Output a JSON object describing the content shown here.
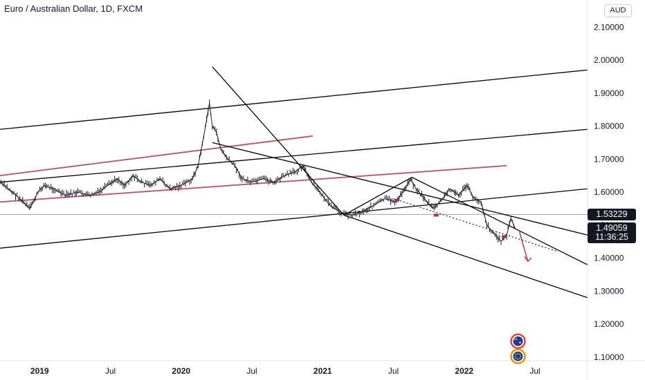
{
  "header": {
    "symbol_title": "Euro / Australian Dollar, 1D, FXCM",
    "currency": "AUD"
  },
  "colors": {
    "candles": "#131722",
    "trendlines": "#000000",
    "channel_red": "#b5606a",
    "arrow": "#b0313a",
    "hline": "#9aa0ad",
    "price_tag_bg": "#131722"
  },
  "chart_data": {
    "type": "line",
    "title": "",
    "xlabel": "",
    "ylabel": "",
    "ylim": [
      1.08,
      2.14
    ],
    "y_ticks": [
      "2.10000",
      "2.00000",
      "1.90000",
      "1.80000",
      "1.70000",
      "1.60000",
      "1.50000",
      "1.40000",
      "1.30000",
      "1.20000",
      "1.10000"
    ],
    "x_ticks": [
      {
        "label": "2019",
        "t": 2019.0,
        "bold": true
      },
      {
        "label": "Jul",
        "t": 2019.5,
        "bold": false
      },
      {
        "label": "2020",
        "t": 2020.0,
        "bold": true
      },
      {
        "label": "Jul",
        "t": 2020.5,
        "bold": false
      },
      {
        "label": "2021",
        "t": 2021.0,
        "bold": true
      },
      {
        "label": "Jul",
        "t": 2021.5,
        "bold": false
      },
      {
        "label": "2022",
        "t": 2022.0,
        "bold": true
      },
      {
        "label": "Jul",
        "t": 2022.5,
        "bold": false
      }
    ],
    "price_path": [
      [
        2018.72,
        1.63
      ],
      [
        2018.78,
        1.61
      ],
      [
        2018.86,
        1.58
      ],
      [
        2018.93,
        1.55
      ],
      [
        2018.99,
        1.6
      ],
      [
        2019.03,
        1.62
      ],
      [
        2019.1,
        1.61
      ],
      [
        2019.18,
        1.59
      ],
      [
        2019.27,
        1.6
      ],
      [
        2019.35,
        1.59
      ],
      [
        2019.42,
        1.6
      ],
      [
        2019.48,
        1.62
      ],
      [
        2019.55,
        1.64
      ],
      [
        2019.6,
        1.62
      ],
      [
        2019.66,
        1.65
      ],
      [
        2019.72,
        1.63
      ],
      [
        2019.78,
        1.62
      ],
      [
        2019.85,
        1.64
      ],
      [
        2019.92,
        1.61
      ],
      [
        2020.0,
        1.62
      ],
      [
        2020.08,
        1.64
      ],
      [
        2020.12,
        1.68
      ],
      [
        2020.16,
        1.77
      ],
      [
        2020.2,
        1.87
      ],
      [
        2020.22,
        1.8
      ],
      [
        2020.25,
        1.78
      ],
      [
        2020.28,
        1.73
      ],
      [
        2020.33,
        1.7
      ],
      [
        2020.38,
        1.68
      ],
      [
        2020.43,
        1.64
      ],
      [
        2020.5,
        1.63
      ],
      [
        2020.58,
        1.64
      ],
      [
        2020.66,
        1.63
      ],
      [
        2020.73,
        1.65
      ],
      [
        2020.8,
        1.66
      ],
      [
        2020.86,
        1.68
      ],
      [
        2020.92,
        1.63
      ],
      [
        2020.98,
        1.6
      ],
      [
        2021.05,
        1.56
      ],
      [
        2021.12,
        1.54
      ],
      [
        2021.2,
        1.53
      ],
      [
        2021.28,
        1.54
      ],
      [
        2021.36,
        1.56
      ],
      [
        2021.44,
        1.58
      ],
      [
        2021.52,
        1.57
      ],
      [
        2021.58,
        1.61
      ],
      [
        2021.62,
        1.64
      ],
      [
        2021.66,
        1.61
      ],
      [
        2021.72,
        1.58
      ],
      [
        2021.78,
        1.55
      ],
      [
        2021.83,
        1.57
      ],
      [
        2021.9,
        1.61
      ],
      [
        2021.96,
        1.59
      ],
      [
        2022.02,
        1.62
      ],
      [
        2022.07,
        1.58
      ],
      [
        2022.12,
        1.57
      ],
      [
        2022.16,
        1.5
      ],
      [
        2022.2,
        1.48
      ],
      [
        2022.26,
        1.45
      ],
      [
        2022.3,
        1.47
      ],
      [
        2022.33,
        1.52
      ],
      [
        2022.36,
        1.49
      ]
    ],
    "trendlines": [
      {
        "points": [
          [
            2018.72,
            1.79
          ],
          [
            2022.87,
            1.97
          ]
        ],
        "color": "trendlines"
      },
      {
        "points": [
          [
            2018.72,
            1.63
          ],
          [
            2022.87,
            1.79
          ]
        ],
        "color": "trendlines"
      },
      {
        "points": [
          [
            2018.72,
            1.43
          ],
          [
            2022.87,
            1.61
          ]
        ],
        "color": "trendlines"
      },
      {
        "points": [
          [
            2018.72,
            1.65
          ],
          [
            2020.93,
            1.77
          ]
        ],
        "color": "channel_red"
      },
      {
        "points": [
          [
            2018.72,
            1.57
          ],
          [
            2022.3,
            1.68
          ]
        ],
        "color": "channel_red"
      },
      {
        "points": [
          [
            2020.22,
            1.98
          ],
          [
            2021.15,
            1.53
          ]
        ],
        "color": "trendlines"
      },
      {
        "points": [
          [
            2020.22,
            1.75
          ],
          [
            2022.87,
            1.47
          ]
        ],
        "color": "trendlines"
      },
      {
        "points": [
          [
            2021.15,
            1.53
          ],
          [
            2022.87,
            1.28
          ]
        ],
        "color": "trendlines"
      },
      {
        "points": [
          [
            2021.15,
            1.53
          ],
          [
            2021.63,
            1.645
          ]
        ],
        "color": "trendlines"
      },
      {
        "points": [
          [
            2021.63,
            1.645
          ],
          [
            2022.87,
            1.38
          ]
        ],
        "color": "trendlines"
      }
    ],
    "dotted_projection": {
      "points": [
        [
          2021.5,
          1.58
        ],
        [
          2022.66,
          1.42
        ]
      ]
    },
    "projection_arrow": {
      "from": [
        2022.39,
        1.48
      ],
      "to": [
        2022.45,
        1.39
      ]
    },
    "horizontal_level": 1.53229,
    "markers": [
      {
        "t": 2021.52,
        "v": 1.575
      },
      {
        "t": 2021.8,
        "v": 1.53
      },
      {
        "t": 2022.28,
        "v": 1.465
      }
    ],
    "last_price_tags": [
      {
        "label": "1.53229",
        "v": 1.53229
      },
      {
        "label": "1.49059",
        "v": 1.49059
      },
      {
        "label": "11:36:25",
        "v": 1.462
      }
    ],
    "event_icons": [
      {
        "name": "australia-flag-icon",
        "t": 2022.38,
        "v": 1.148,
        "ring": "#e0403a"
      },
      {
        "name": "eu-flag-icon",
        "t": 2022.38,
        "v": 1.102,
        "ring": "#f08c00"
      }
    ]
  }
}
